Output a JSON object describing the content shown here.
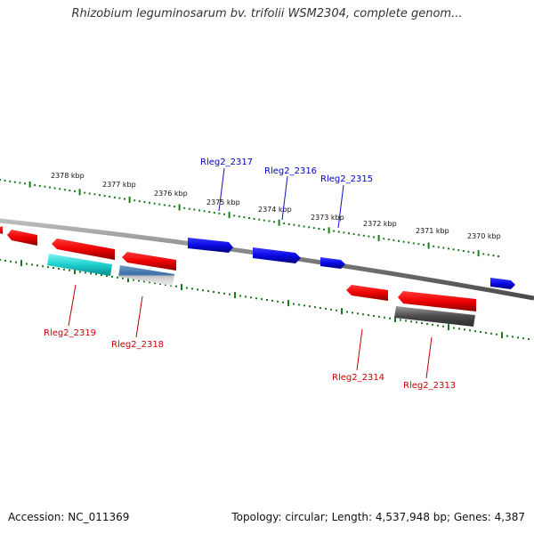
{
  "title": "Rhizobium leguminosarum bv. trifolii WSM2304, complete genom...",
  "accession": "Accession: NC_011369",
  "summary": "Topology: circular; Length: 4,537,948 bp; Genes: 4,387",
  "ticks": [
    {
      "label": "2378 kbp"
    },
    {
      "label": "2377 kbp"
    },
    {
      "label": "2376 kbp"
    },
    {
      "label": "2375 kbp"
    },
    {
      "label": "2374 kbp"
    },
    {
      "label": "2373 kbp"
    },
    {
      "label": "2372 kbp"
    },
    {
      "label": "2371 kbp"
    },
    {
      "label": "2370 kbp"
    }
  ],
  "genes": [
    {
      "label": "Rleg2_2317",
      "strand": "forward",
      "color": "#0000cc"
    },
    {
      "label": "Rleg2_2316",
      "strand": "forward",
      "color": "#0000cc"
    },
    {
      "label": "Rleg2_2315",
      "strand": "forward",
      "color": "#0000cc"
    },
    {
      "label": "Rleg2_2319",
      "strand": "reverse",
      "color": "#cc0000"
    },
    {
      "label": "Rleg2_2318",
      "strand": "reverse",
      "color": "#cc0000"
    },
    {
      "label": "Rleg2_2314",
      "strand": "reverse",
      "color": "#cc0000"
    },
    {
      "label": "Rleg2_2313",
      "strand": "reverse",
      "color": "#cc0000"
    }
  ],
  "colors": {
    "forward_gene": "#1010e0",
    "reverse_gene": "#e00000",
    "backbone": "#888888",
    "tick": "#1a7a1a"
  }
}
